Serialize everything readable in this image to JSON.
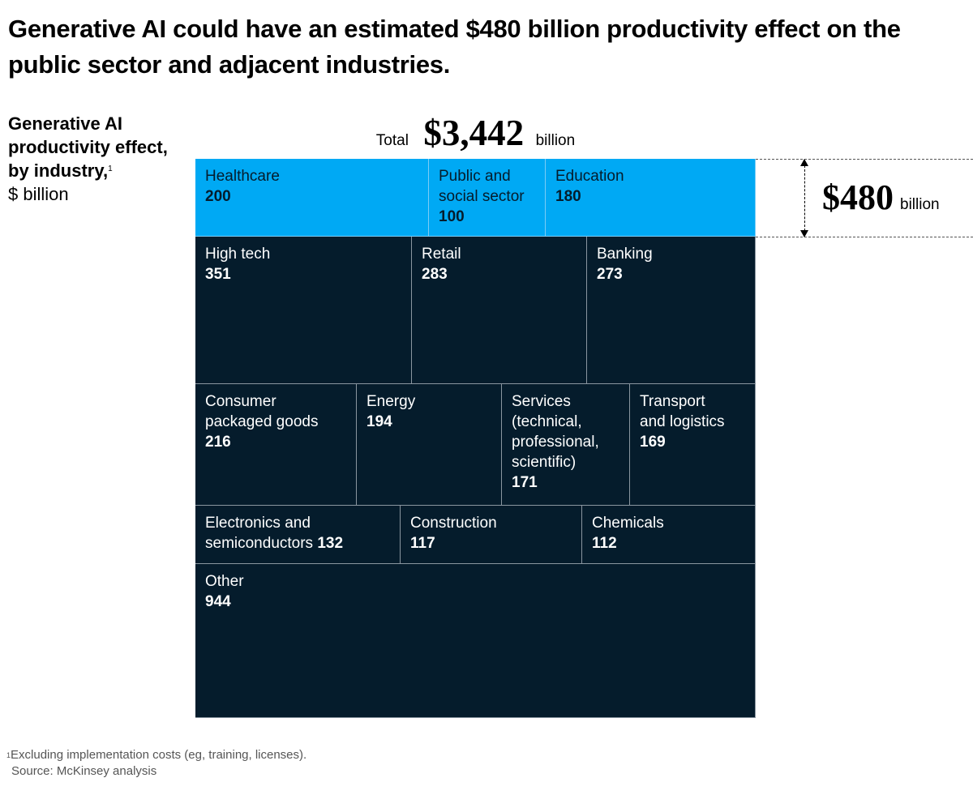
{
  "title": "Generative AI could have an estimated $480 billion productivity effect on the public sector and adjacent industries.",
  "side_label": {
    "bold": "Generative AI productivity effect, by industry,",
    "footnote_marker": "1",
    "unit": "$ billion"
  },
  "total": {
    "prefix": "Total",
    "value": "$3,442",
    "suffix": "billion"
  },
  "highlight_total": {
    "value": "$480",
    "suffix": "billion"
  },
  "colors": {
    "highlight": "#00a9f4",
    "dark": "#051c2c"
  },
  "chart_data": {
    "type": "treemap",
    "title": "Generative AI productivity effect, by industry, $ billion",
    "unit": "$ billion",
    "total": 3442,
    "highlight_group": {
      "label": "Public sector and adjacent industries",
      "total": 480,
      "members": [
        "Healthcare",
        "Public and social sector",
        "Education"
      ]
    },
    "rows": [
      [
        {
          "label": "Healthcare",
          "value": 200,
          "highlight": true
        },
        {
          "label": "Public and social sector",
          "value": 100,
          "highlight": true
        },
        {
          "label": "Education",
          "value": 180,
          "highlight": true
        }
      ],
      [
        {
          "label": "High tech",
          "value": 351
        },
        {
          "label": "Retail",
          "value": 283
        },
        {
          "label": "Banking",
          "value": 273
        }
      ],
      [
        {
          "label": "Consumer packaged goods",
          "value": 216
        },
        {
          "label": "Energy",
          "value": 194
        },
        {
          "label": "Services (technical, professional, scientific)",
          "value": 171
        },
        {
          "label": "Transport and logistics",
          "value": 169
        }
      ],
      [
        {
          "label": "Electronics and semiconductors",
          "value": 132,
          "inline_value": true
        },
        {
          "label": "Construction",
          "value": 117
        },
        {
          "label": "Chemicals",
          "value": 112
        }
      ],
      [
        {
          "label": "Other",
          "value": 944
        }
      ]
    ],
    "display_names": {
      "Public and social sector": [
        "Public and",
        "social sector"
      ],
      "Consumer packaged goods": [
        "Consumer",
        "packaged goods"
      ],
      "Services (technical, professional, scientific)": [
        "Services",
        "(technical,",
        "professional,",
        "scientific)"
      ],
      "Transport and logistics": [
        "Transport",
        "and logistics"
      ],
      "Electronics and semiconductors": [
        "Electronics and",
        "semiconductors"
      ]
    }
  },
  "footnote": {
    "marker": "1",
    "text": "Excluding implementation costs (eg, training, licenses).",
    "source": "Source: McKinsey analysis"
  }
}
